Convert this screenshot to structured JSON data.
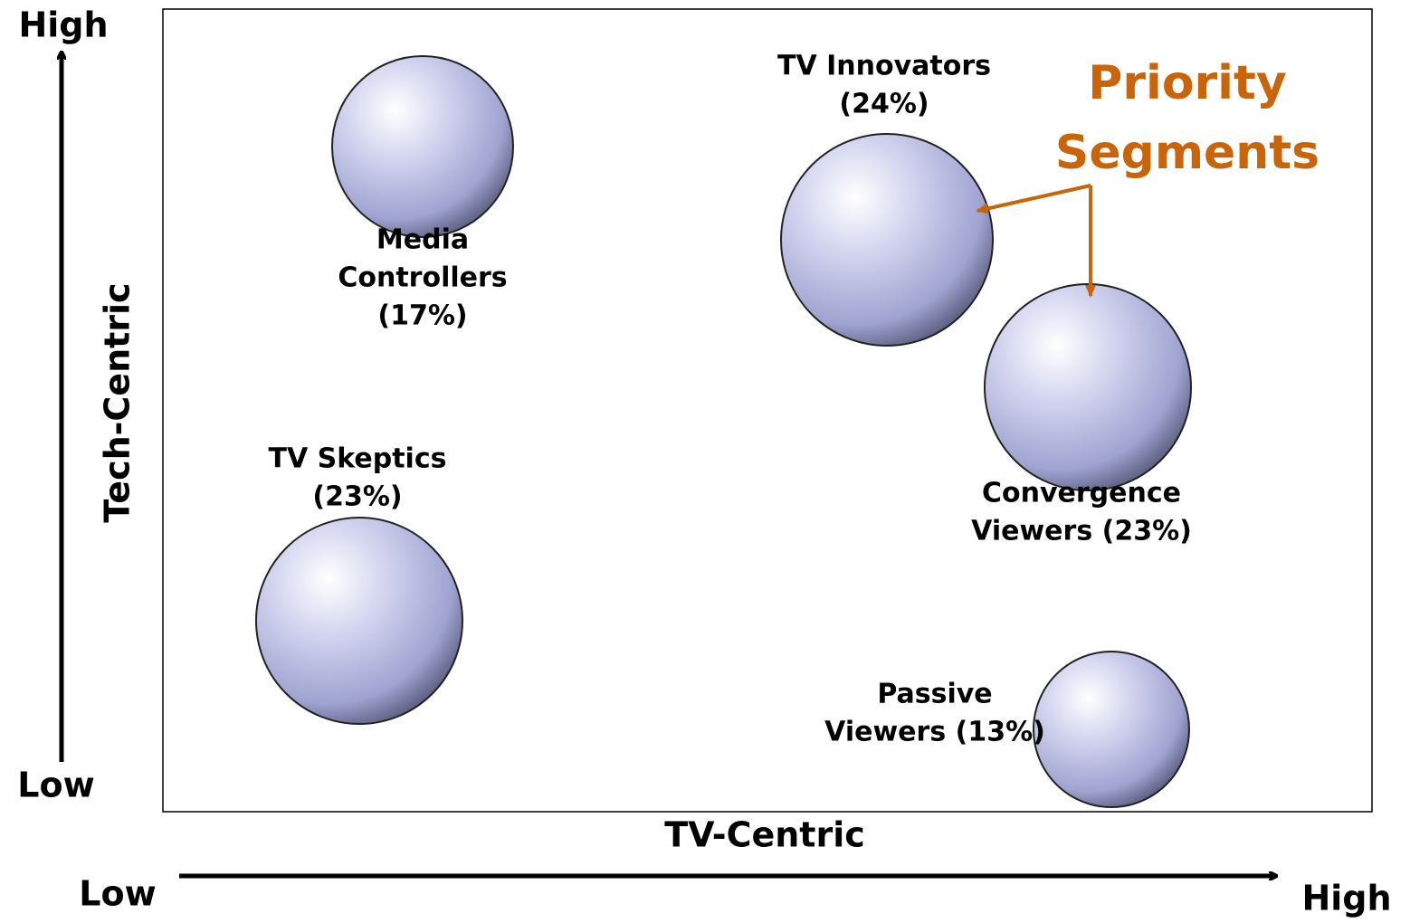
{
  "axes": {
    "y_label": "Tech-Centric",
    "y_high": "High",
    "y_low": "Low",
    "x_label": "TV-Centric",
    "x_low": "Low",
    "x_high": "High"
  },
  "callout": {
    "lines": [
      "Priority",
      "Segments"
    ]
  },
  "nodes": [
    {
      "lines": [
        "Media",
        "Controllers",
        "(17%)"
      ]
    },
    {
      "lines": [
        "TV Innovators",
        "(24%)"
      ]
    },
    {
      "lines": [
        "Convergence",
        "Viewers (23%)"
      ]
    },
    {
      "lines": [
        "TV Skeptics",
        "(23%)"
      ]
    },
    {
      "lines": [
        "Passive",
        "Viewers (13%)"
      ]
    }
  ]
}
